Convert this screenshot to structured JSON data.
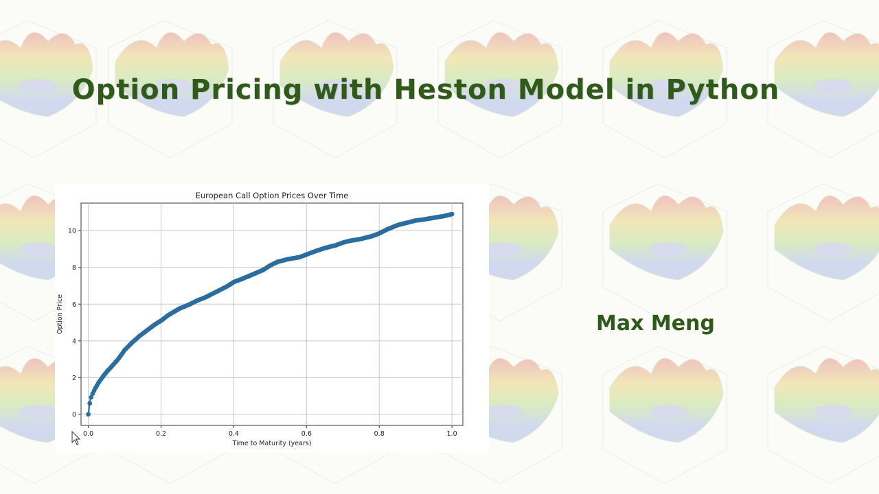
{
  "slide": {
    "title": "Option Pricing with Heston Model in Python",
    "author": "Max Meng"
  },
  "icons": {
    "cursor": "arrow-cursor-icon",
    "background": "surface-plot-pattern"
  },
  "colors": {
    "title": "#2f5a19",
    "series": "#2a6d9e",
    "grid": "#c8c8c8"
  },
  "chart_data": {
    "type": "line",
    "title": "European Call Option Prices Over Time",
    "xlabel": "Time to Maturity (years)",
    "ylabel": "Option Price",
    "xlim": [
      -0.02,
      1.03
    ],
    "ylim": [
      -0.6,
      11.5
    ],
    "xticks": [
      0.0,
      0.2,
      0.4,
      0.6,
      0.8,
      1.0
    ],
    "xtick_labels": [
      "0.0",
      "0.2",
      "0.4",
      "0.6",
      "0.8",
      "1.0"
    ],
    "yticks": [
      0,
      2,
      4,
      6,
      8,
      10
    ],
    "ytick_labels": [
      "0",
      "2",
      "4",
      "6",
      "8",
      "10"
    ],
    "grid": true,
    "marker": "circle",
    "series": [
      {
        "color": "#2a6d9e",
        "points": [
          [
            0.0,
            0.0
          ],
          [
            0.005,
            0.75
          ],
          [
            0.01,
            1.05
          ],
          [
            0.02,
            1.45
          ],
          [
            0.03,
            1.78
          ],
          [
            0.04,
            2.05
          ],
          [
            0.05,
            2.3
          ],
          [
            0.06,
            2.52
          ],
          [
            0.08,
            2.95
          ],
          [
            0.1,
            3.5
          ],
          [
            0.12,
            3.9
          ],
          [
            0.14,
            4.25
          ],
          [
            0.16,
            4.55
          ],
          [
            0.18,
            4.85
          ],
          [
            0.2,
            5.1
          ],
          [
            0.22,
            5.4
          ],
          [
            0.25,
            5.75
          ],
          [
            0.28,
            6.0
          ],
          [
            0.3,
            6.2
          ],
          [
            0.32,
            6.35
          ],
          [
            0.35,
            6.65
          ],
          [
            0.38,
            6.95
          ],
          [
            0.4,
            7.2
          ],
          [
            0.42,
            7.35
          ],
          [
            0.45,
            7.6
          ],
          [
            0.48,
            7.85
          ],
          [
            0.5,
            8.1
          ],
          [
            0.52,
            8.3
          ],
          [
            0.55,
            8.45
          ],
          [
            0.58,
            8.55
          ],
          [
            0.6,
            8.7
          ],
          [
            0.62,
            8.85
          ],
          [
            0.65,
            9.05
          ],
          [
            0.68,
            9.2
          ],
          [
            0.7,
            9.35
          ],
          [
            0.72,
            9.45
          ],
          [
            0.75,
            9.55
          ],
          [
            0.78,
            9.7
          ],
          [
            0.8,
            9.85
          ],
          [
            0.82,
            10.05
          ],
          [
            0.85,
            10.3
          ],
          [
            0.88,
            10.45
          ],
          [
            0.9,
            10.55
          ],
          [
            0.92,
            10.6
          ],
          [
            0.95,
            10.7
          ],
          [
            0.98,
            10.8
          ],
          [
            1.0,
            10.9
          ]
        ]
      }
    ]
  }
}
